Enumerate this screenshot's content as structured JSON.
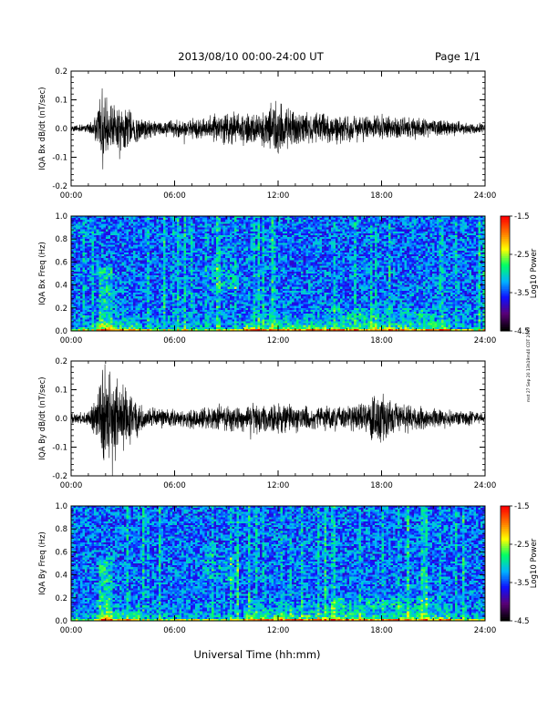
{
  "header": {
    "title": "2013/08/10  00:00-24:00 UT",
    "page": "Page 1/1"
  },
  "footer": {
    "xlabel": "Universal Time (hh:mm)",
    "side_note": "mst 27 Sep 20 13h19m40 CDT 2019"
  },
  "colors": {
    "line": "#000000",
    "colormap": [
      "#000000",
      "#5a0078",
      "#1010ff",
      "#00b4ff",
      "#00ff64",
      "#ffff00",
      "#ff7800",
      "#ff0000"
    ]
  },
  "chart_data": [
    {
      "type": "line",
      "name": "bx_waveform",
      "ylabel": "IQA Bx dB/dt (nT/sec)",
      "x_unit": "hours UT",
      "xlim": [
        0,
        24
      ],
      "ylim": [
        -0.2,
        0.2
      ],
      "yticks": [
        "0.2",
        "0.1",
        "0.0",
        "-0.1",
        "-0.2"
      ],
      "xticks": [
        "00:00",
        "06:00",
        "12:00",
        "18:00",
        "24:00"
      ],
      "envelope": {
        "x": [
          0,
          1.0,
          1.5,
          1.8,
          2.0,
          2.5,
          3.0,
          3.5,
          4.0,
          5.0,
          6.0,
          7.0,
          8.0,
          9.0,
          10.0,
          11.0,
          11.5,
          12.0,
          12.5,
          13.0,
          14.0,
          15.0,
          16.0,
          17.0,
          18.0,
          19.0,
          20.0,
          21.0,
          22.0,
          23.0,
          24.0
        ],
        "amp": [
          0.012,
          0.018,
          0.06,
          0.2,
          0.12,
          0.1,
          0.09,
          0.07,
          0.05,
          0.03,
          0.035,
          0.04,
          0.05,
          0.06,
          0.065,
          0.07,
          0.09,
          0.12,
          0.09,
          0.07,
          0.06,
          0.06,
          0.055,
          0.05,
          0.05,
          0.045,
          0.04,
          0.035,
          0.03,
          0.025,
          0.02
        ]
      }
    },
    {
      "type": "heatmap",
      "name": "bx_spectrogram",
      "ylabel": "IQA Bx Freq (Hz)",
      "xlim": [
        0,
        24
      ],
      "ylim": [
        0,
        1.0
      ],
      "yticks": [
        "1.0",
        "0.8",
        "0.6",
        "0.4",
        "0.2",
        "0.0"
      ],
      "xticks": [
        "00:00",
        "06:00",
        "12:00",
        "18:00",
        "24:00"
      ],
      "colorbar": {
        "label": "Log10 Power",
        "range": [
          -4.5,
          -1.5
        ],
        "ticks": [
          "-1.5",
          "-2.5",
          "-3.5",
          "-4.5"
        ]
      }
    },
    {
      "type": "line",
      "name": "by_waveform",
      "ylabel": "IQA By dB/dt (nT/sec)",
      "x_unit": "hours UT",
      "xlim": [
        0,
        24
      ],
      "ylim": [
        -0.2,
        0.2
      ],
      "yticks": [
        "0.2",
        "0.1",
        "0.0",
        "-0.1",
        "-0.2"
      ],
      "xticks": [
        "00:00",
        "06:00",
        "12:00",
        "18:00",
        "24:00"
      ],
      "envelope": {
        "x": [
          0,
          1.0,
          1.5,
          1.8,
          2.0,
          2.5,
          3.0,
          3.5,
          4.0,
          5.0,
          6.0,
          7.0,
          8.0,
          9.0,
          10.0,
          11.0,
          12.0,
          13.0,
          14.0,
          15.0,
          16.0,
          17.0,
          17.5,
          18.0,
          18.5,
          19.0,
          20.0,
          21.0,
          22.0,
          23.0,
          24.0
        ],
        "amp": [
          0.02,
          0.03,
          0.1,
          0.2,
          0.2,
          0.16,
          0.15,
          0.1,
          0.06,
          0.04,
          0.035,
          0.04,
          0.045,
          0.05,
          0.055,
          0.06,
          0.06,
          0.055,
          0.05,
          0.05,
          0.05,
          0.06,
          0.1,
          0.12,
          0.08,
          0.06,
          0.05,
          0.04,
          0.035,
          0.03,
          0.025
        ]
      }
    },
    {
      "type": "heatmap",
      "name": "by_spectrogram",
      "ylabel": "IQA By Freq (Hz)",
      "xlim": [
        0,
        24
      ],
      "ylim": [
        0,
        1.0
      ],
      "yticks": [
        "1.0",
        "0.8",
        "0.6",
        "0.4",
        "0.2",
        "0.0"
      ],
      "xticks": [
        "00:00",
        "06:00",
        "12:00",
        "18:00",
        "24:00"
      ],
      "colorbar": {
        "label": "Log10 Power",
        "range": [
          -4.5,
          -1.5
        ],
        "ticks": [
          "-1.5",
          "-2.5",
          "-3.5",
          "-4.5"
        ]
      }
    }
  ]
}
